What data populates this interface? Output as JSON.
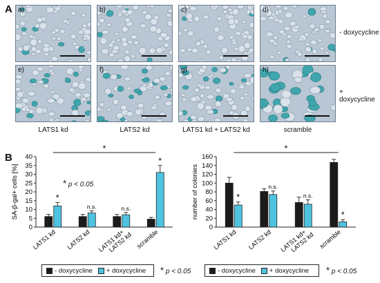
{
  "panel_a": {
    "letter": "A",
    "images": [
      {
        "sub": "a)",
        "blue": 0.04
      },
      {
        "sub": "b)",
        "blue": 0.03
      },
      {
        "sub": "c)",
        "blue": 0.03
      },
      {
        "sub": "d)",
        "blue": 0.05
      },
      {
        "sub": "e)",
        "blue": 0.25
      },
      {
        "sub": "f)",
        "blue": 0.22
      },
      {
        "sub": "g)",
        "blue": 0.25
      },
      {
        "sub": "h)",
        "blue": 0.6
      }
    ],
    "row_labels": [
      "- doxycycline",
      "+ doxycycline"
    ],
    "column_labels": [
      "LATS1 kd",
      "LATS2 kd",
      "LATS1 kd + LATS2 kd",
      "scramble"
    ]
  },
  "panel_b": {
    "letter": "B",
    "colors": {
      "minus": "#1b1b1b",
      "plus": "#4ec3e0"
    },
    "legend": {
      "minus": "- doxycycline",
      "plus": "+ doxycycline"
    },
    "significance_note": {
      "star": "*",
      "text": "p < 0.05"
    }
  },
  "chart_data": [
    {
      "type": "bar",
      "ylabel": "SA-β-gal+ cells [%]",
      "ylim": [
        0,
        40
      ],
      "yticks": [
        0,
        5,
        10,
        15,
        20,
        25,
        30,
        35,
        40
      ],
      "categories": [
        "LATS1 kd",
        "LATS2 kd",
        "LATS1 kd+ LATS2 kd",
        "scramble"
      ],
      "series": [
        {
          "name": "- doxycycline",
          "values": [
            6,
            6,
            6,
            4.5
          ],
          "errors": [
            1.2,
            1.2,
            1.2,
            1
          ]
        },
        {
          "name": "+ doxycycline",
          "values": [
            12,
            8,
            7,
            31
          ],
          "errors": [
            2,
            1.3,
            1.3,
            4
          ]
        }
      ],
      "annotations": {
        "labels": [
          "*",
          "n.s.",
          "n.s.",
          "*"
        ],
        "bracket_star": "*",
        "inset_note": "p < 0.05",
        "inset_star": "*"
      }
    },
    {
      "type": "bar",
      "ylabel": "number of colonies",
      "ylim": [
        0,
        160
      ],
      "yticks": [
        0,
        20,
        40,
        60,
        80,
        100,
        120,
        140,
        160
      ],
      "categories": [
        "LATS1 kd",
        "LATS2 kd",
        "LATS1 kd+ LATS2 kd",
        "scramble"
      ],
      "series": [
        {
          "name": "- doxycycline",
          "values": [
            100,
            81,
            56,
            147
          ],
          "errors": [
            13,
            6,
            12,
            7
          ]
        },
        {
          "name": "+ doxycycline",
          "values": [
            50,
            74,
            52,
            12
          ],
          "errors": [
            7,
            8,
            10,
            5
          ]
        }
      ],
      "annotations": {
        "labels": [
          "*",
          "n.s.",
          "n.s.",
          "*"
        ],
        "bracket_star": "*"
      }
    }
  ]
}
